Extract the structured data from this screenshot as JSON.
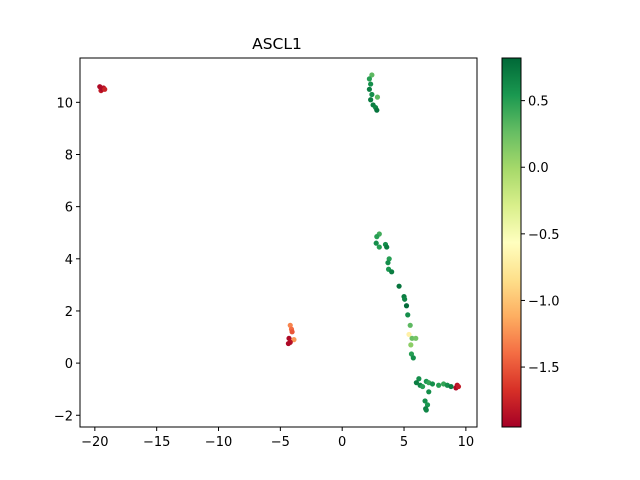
{
  "chart_data": {
    "type": "scatter",
    "title": "ASCL1",
    "xlabel": "",
    "ylabel": "",
    "xlim": [
      -21.2,
      10.9
    ],
    "ylim": [
      -2.45,
      11.7
    ],
    "xticks": [
      -20,
      -15,
      -10,
      -5,
      0,
      5,
      10
    ],
    "xtick_labels": [
      "−20",
      "−15",
      "−10",
      "−5",
      "0",
      "5",
      "10"
    ],
    "yticks": [
      -2,
      0,
      2,
      4,
      6,
      8,
      10
    ],
    "ytick_labels": [
      "−2",
      "0",
      "2",
      "4",
      "6",
      "8",
      "10"
    ],
    "colorbar": {
      "colormap": "RdYlGn",
      "min": -1.95,
      "max": 0.82,
      "ticks": [
        0.5,
        0.0,
        -0.5,
        -1.0,
        -1.5
      ],
      "tick_labels": [
        "0.5",
        "0.0",
        "−0.5",
        "−1.0",
        "−1.5"
      ],
      "colors": [
        "#a50026",
        "#d73027",
        "#f46d43",
        "#fdae61",
        "#fee08b",
        "#ffffbf",
        "#d9ef8b",
        "#a6d96a",
        "#66bd63",
        "#1a9850",
        "#006837"
      ]
    },
    "grid": false,
    "points": [
      {
        "x": -19.6,
        "y": 10.6,
        "c": -1.9
      },
      {
        "x": -19.3,
        "y": 10.55,
        "c": -1.85
      },
      {
        "x": -19.5,
        "y": 10.45,
        "c": -1.8
      },
      {
        "x": -19.4,
        "y": 10.5,
        "c": -1.9
      },
      {
        "x": -19.2,
        "y": 10.5,
        "c": -1.75
      },
      {
        "x": -4.2,
        "y": 1.45,
        "c": -1.3
      },
      {
        "x": -4.1,
        "y": 1.3,
        "c": -1.4
      },
      {
        "x": -4.05,
        "y": 1.2,
        "c": -1.5
      },
      {
        "x": -4.3,
        "y": 0.95,
        "c": -1.9
      },
      {
        "x": -3.9,
        "y": 0.9,
        "c": -1.2
      },
      {
        "x": -4.2,
        "y": 0.8,
        "c": -1.85
      },
      {
        "x": -4.35,
        "y": 0.75,
        "c": -1.9
      },
      {
        "x": 2.4,
        "y": 11.05,
        "c": 0.3
      },
      {
        "x": 2.2,
        "y": 10.9,
        "c": 0.5
      },
      {
        "x": 2.3,
        "y": 10.7,
        "c": 0.6
      },
      {
        "x": 2.2,
        "y": 10.5,
        "c": 0.7
      },
      {
        "x": 2.4,
        "y": 10.3,
        "c": 0.6
      },
      {
        "x": 2.3,
        "y": 10.1,
        "c": 0.7
      },
      {
        "x": 2.85,
        "y": 10.2,
        "c": 0.3
      },
      {
        "x": 2.5,
        "y": 9.9,
        "c": 0.7
      },
      {
        "x": 2.7,
        "y": 9.8,
        "c": 0.65
      },
      {
        "x": 2.8,
        "y": 9.7,
        "c": 0.75
      },
      {
        "x": 3.0,
        "y": 4.95,
        "c": 0.4
      },
      {
        "x": 2.8,
        "y": 4.85,
        "c": 0.5
      },
      {
        "x": 2.75,
        "y": 4.6,
        "c": 0.6
      },
      {
        "x": 3.0,
        "y": 4.45,
        "c": 0.5
      },
      {
        "x": 3.5,
        "y": 4.55,
        "c": 0.6
      },
      {
        "x": 3.6,
        "y": 4.45,
        "c": 0.7
      },
      {
        "x": 3.8,
        "y": 4.0,
        "c": 0.5
      },
      {
        "x": 3.7,
        "y": 3.85,
        "c": 0.6
      },
      {
        "x": 3.75,
        "y": 3.6,
        "c": 0.55
      },
      {
        "x": 4.0,
        "y": 3.5,
        "c": 0.7
      },
      {
        "x": 4.6,
        "y": 2.95,
        "c": 0.75
      },
      {
        "x": 5.0,
        "y": 2.55,
        "c": 0.7
      },
      {
        "x": 5.05,
        "y": 2.45,
        "c": 0.65
      },
      {
        "x": 5.2,
        "y": 2.2,
        "c": 0.8
      },
      {
        "x": 5.3,
        "y": 1.85,
        "c": 0.6
      },
      {
        "x": 5.5,
        "y": 1.45,
        "c": 0.3
      },
      {
        "x": 5.4,
        "y": 1.1,
        "c": -0.7
      },
      {
        "x": 5.65,
        "y": 0.95,
        "c": 0.25
      },
      {
        "x": 5.95,
        "y": 0.95,
        "c": 0.2
      },
      {
        "x": 5.55,
        "y": 0.7,
        "c": 0.1
      },
      {
        "x": 5.6,
        "y": 0.35,
        "c": 0.5
      },
      {
        "x": 5.75,
        "y": 0.2,
        "c": 0.6
      },
      {
        "x": 6.2,
        "y": -0.6,
        "c": 0.6
      },
      {
        "x": 6.0,
        "y": -0.75,
        "c": 0.7
      },
      {
        "x": 6.3,
        "y": -0.85,
        "c": 0.65
      },
      {
        "x": 6.5,
        "y": -0.9,
        "c": 0.5
      },
      {
        "x": 6.8,
        "y": -0.7,
        "c": 0.55
      },
      {
        "x": 7.0,
        "y": -0.75,
        "c": 0.45
      },
      {
        "x": 7.3,
        "y": -0.8,
        "c": 0.6
      },
      {
        "x": 7.8,
        "y": -0.85,
        "c": 0.5
      },
      {
        "x": 8.2,
        "y": -0.8,
        "c": 0.45
      },
      {
        "x": 8.5,
        "y": -0.85,
        "c": 0.6
      },
      {
        "x": 8.8,
        "y": -0.9,
        "c": 0.7
      },
      {
        "x": 7.0,
        "y": -1.1,
        "c": 0.6
      },
      {
        "x": 6.7,
        "y": -1.45,
        "c": 0.6
      },
      {
        "x": 6.9,
        "y": -1.6,
        "c": 0.55
      },
      {
        "x": 6.75,
        "y": -1.75,
        "c": 0.7
      },
      {
        "x": 6.8,
        "y": -1.8,
        "c": 0.65
      },
      {
        "x": 9.3,
        "y": -0.85,
        "c": -1.85
      },
      {
        "x": 9.2,
        "y": -0.95,
        "c": -1.9
      },
      {
        "x": 9.4,
        "y": -0.9,
        "c": -1.8
      }
    ]
  }
}
